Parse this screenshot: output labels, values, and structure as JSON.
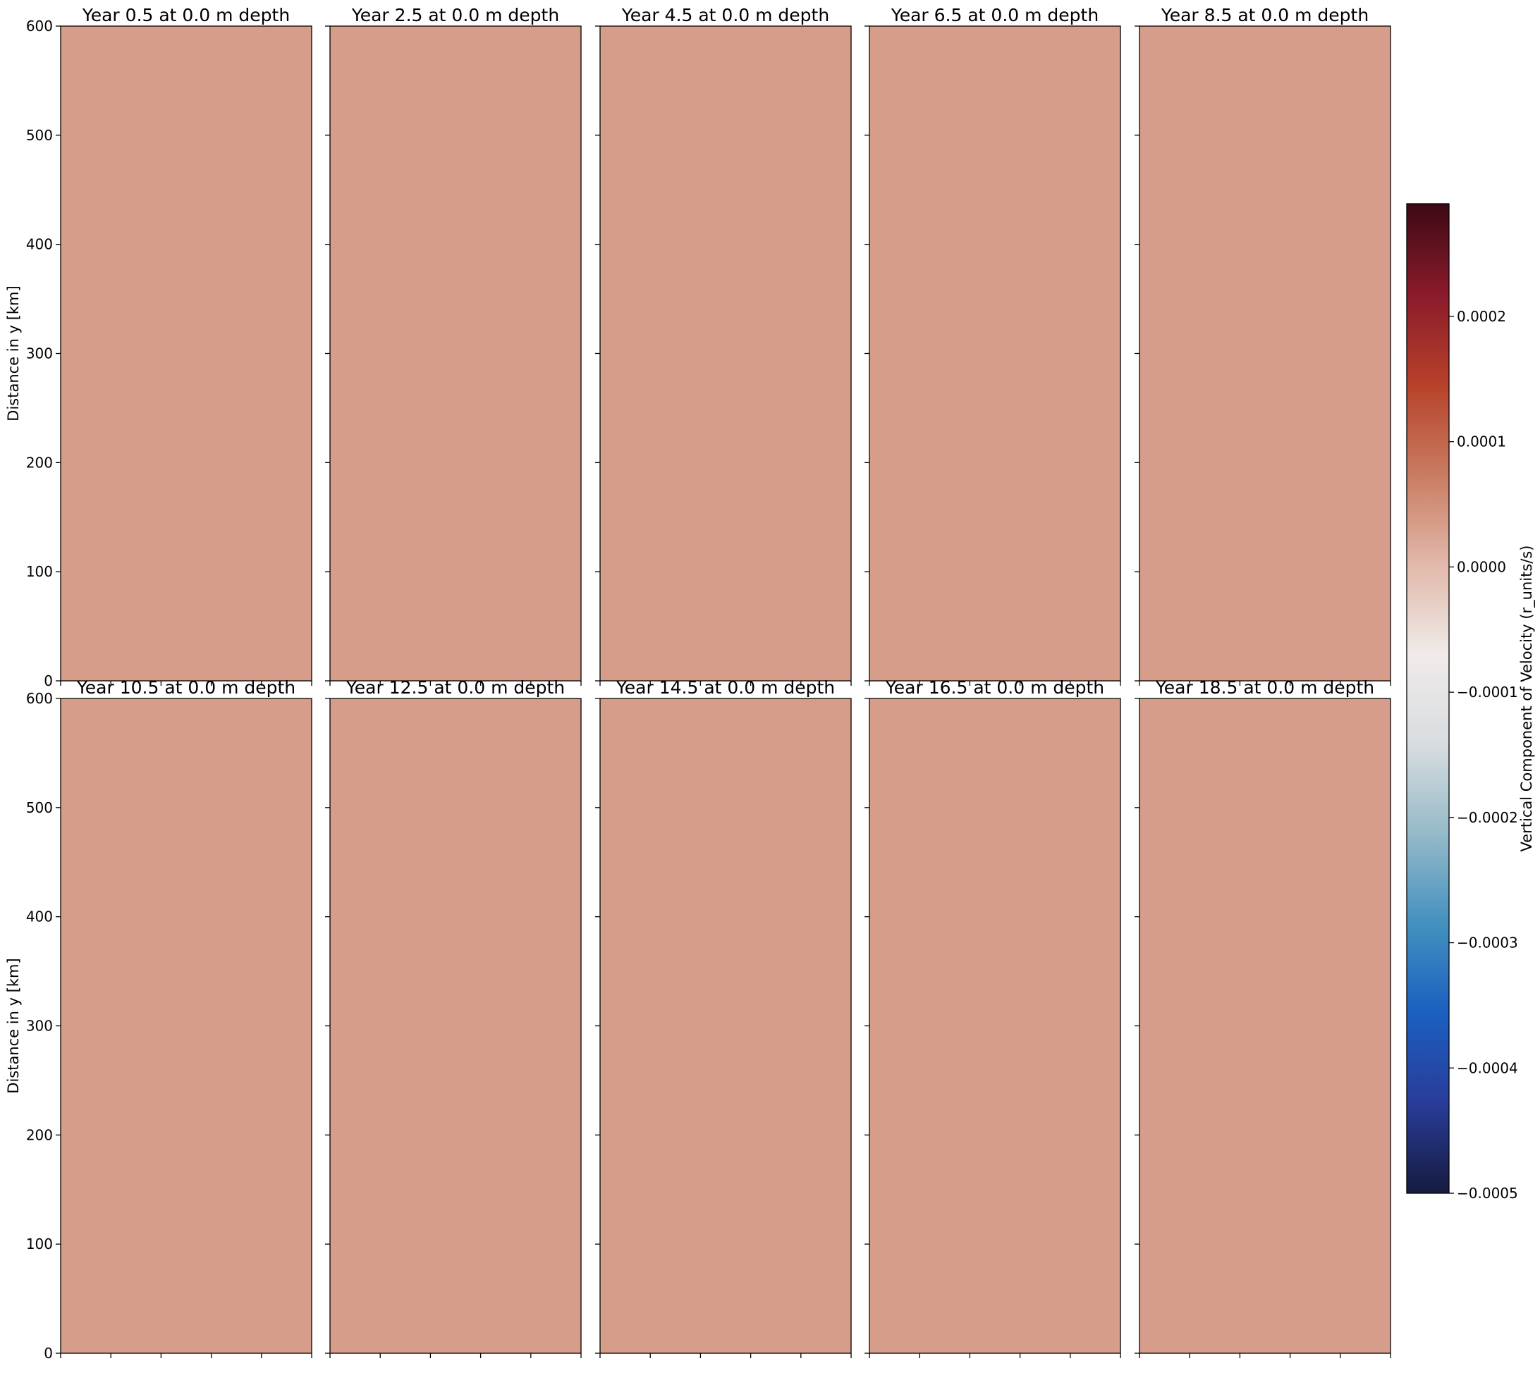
{
  "chart_data": [
    {
      "type": "heatmap",
      "title": "Year 0.5 at 0.0 m depth",
      "ylabel": "Distance in y [km]",
      "ylim": [
        0,
        600
      ],
      "yticks": [
        "0",
        "100",
        "200",
        "300",
        "400",
        "500",
        "600"
      ],
      "value": 0.0
    },
    {
      "type": "heatmap",
      "title": "Year 2.5 at 0.0 m depth",
      "ylabel": "",
      "ylim": [
        0,
        600
      ],
      "yticks": [],
      "value": 0.0
    },
    {
      "type": "heatmap",
      "title": "Year 4.5 at 0.0 m depth",
      "ylabel": "",
      "ylim": [
        0,
        600
      ],
      "yticks": [],
      "value": 0.0
    },
    {
      "type": "heatmap",
      "title": "Year 6.5 at 0.0 m depth",
      "ylabel": "",
      "ylim": [
        0,
        600
      ],
      "yticks": [],
      "value": 0.0
    },
    {
      "type": "heatmap",
      "title": "Year 8.5 at 0.0 m depth",
      "ylabel": "",
      "ylim": [
        0,
        600
      ],
      "yticks": [],
      "value": 0.0
    },
    {
      "type": "heatmap",
      "title": "Year 10.5 at 0.0 m depth",
      "ylabel": "Distance in y [km]",
      "ylim": [
        0,
        600
      ],
      "yticks": [
        "0",
        "100",
        "200",
        "300",
        "400",
        "500",
        "600"
      ],
      "value": 0.0
    },
    {
      "type": "heatmap",
      "title": "Year 12.5 at 0.0 m depth",
      "ylabel": "",
      "ylim": [
        0,
        600
      ],
      "yticks": [],
      "value": 0.0
    },
    {
      "type": "heatmap",
      "title": "Year 14.5 at 0.0 m depth",
      "ylabel": "",
      "ylim": [
        0,
        600
      ],
      "yticks": [],
      "value": 0.0
    },
    {
      "type": "heatmap",
      "title": "Year 16.5 at 0.0 m depth",
      "ylabel": "",
      "ylim": [
        0,
        600
      ],
      "yticks": [],
      "value": 0.0
    },
    {
      "type": "heatmap",
      "title": "Year 18.5 at 0.0 m depth",
      "ylabel": "",
      "ylim": [
        0,
        600
      ],
      "yticks": [],
      "value": 0.0
    }
  ],
  "colorbar": {
    "label": "Vertical Component of Velocity (r_units/s)",
    "range": [
      -0.0005,
      0.00029
    ],
    "ticks": [
      {
        "value": 0.0002,
        "label": "0.0002"
      },
      {
        "value": 0.0001,
        "label": "0.0001"
      },
      {
        "value": 0.0,
        "label": "0.0000"
      },
      {
        "value": -0.0001,
        "label": "−0.0001"
      },
      {
        "value": -0.0002,
        "label": "−0.0002"
      },
      {
        "value": -0.0003,
        "label": "−0.0003"
      },
      {
        "value": -0.0004,
        "label": "−0.0004"
      },
      {
        "value": -0.0005,
        "label": "−0.0005"
      }
    ],
    "colormap": "balance",
    "colors": [
      "#161b3e",
      "#293c9a",
      "#1b5fbf",
      "#4391bf",
      "#96bac8",
      "#d8dde0",
      "#f0ebe9",
      "#e1b8aa",
      "#c97b60",
      "#b6412a",
      "#8a1a2b",
      "#3c0a14"
    ],
    "field_color": "#d69e8a"
  }
}
